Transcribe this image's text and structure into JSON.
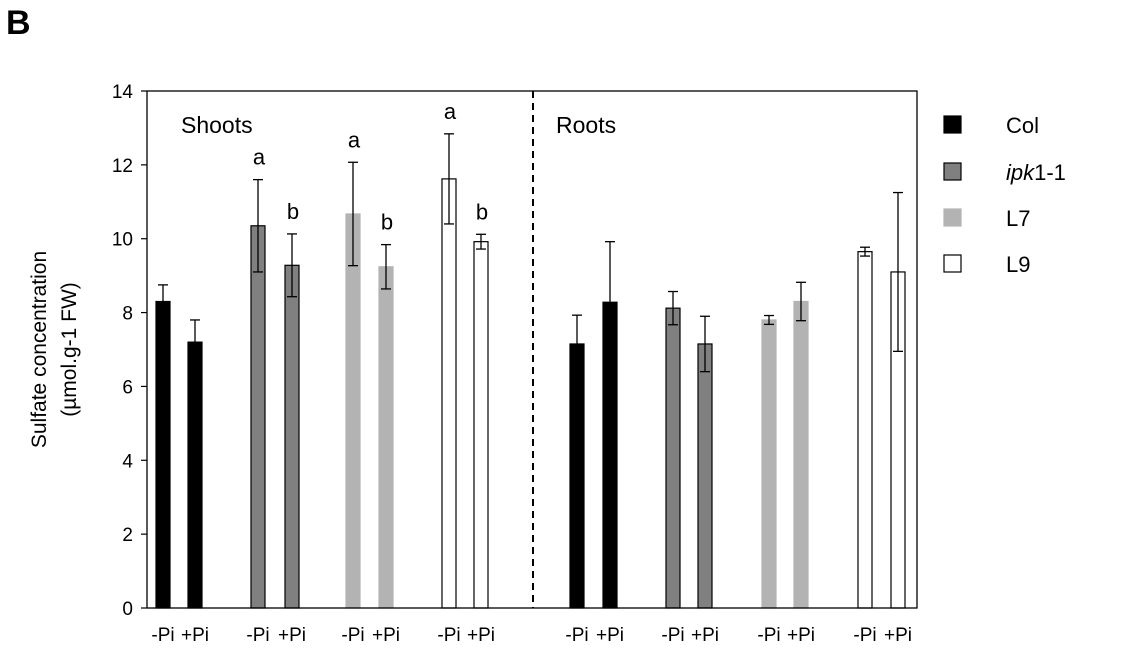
{
  "panel_label": "B",
  "chart_data": {
    "type": "bar",
    "ylabel": [
      "Sulfate concentration",
      "(µmol.g-1 FW)"
    ],
    "ylim": [
      0,
      14
    ],
    "yticks": [
      0,
      2,
      4,
      6,
      8,
      10,
      12,
      14
    ],
    "groups": [
      {
        "tissue": "Shoots",
        "line": "Col",
        "x_labels": [
          "-Pi",
          "+Pi"
        ],
        "values": [
          8.3,
          7.2
        ],
        "errors": [
          0.45,
          0.6
        ],
        "sig": [
          "",
          ""
        ]
      },
      {
        "tissue": "Shoots",
        "line": "ipk1-1",
        "x_labels": [
          "-Pi",
          "+Pi"
        ],
        "values": [
          10.35,
          9.28
        ],
        "errors": [
          1.25,
          0.85
        ],
        "sig": [
          "a",
          "b"
        ]
      },
      {
        "tissue": "Shoots",
        "line": "L7",
        "x_labels": [
          "-Pi",
          "+Pi"
        ],
        "values": [
          10.67,
          9.24
        ],
        "errors": [
          1.4,
          0.6
        ],
        "sig": [
          "a",
          "b"
        ]
      },
      {
        "tissue": "Shoots",
        "line": "L9",
        "x_labels": [
          "-Pi",
          "+Pi"
        ],
        "values": [
          11.62,
          9.92
        ],
        "errors": [
          1.22,
          0.2
        ],
        "sig": [
          "a",
          "b"
        ]
      },
      {
        "tissue": "Roots",
        "line": "Col",
        "x_labels": [
          "-Pi",
          "+Pi"
        ],
        "values": [
          7.15,
          8.28
        ],
        "errors": [
          0.78,
          1.64
        ],
        "sig": [
          "",
          ""
        ]
      },
      {
        "tissue": "Roots",
        "line": "ipk1-1",
        "x_labels": [
          "-Pi",
          "+Pi"
        ],
        "values": [
          8.12,
          7.15
        ],
        "errors": [
          0.45,
          0.75
        ],
        "sig": [
          "",
          ""
        ]
      },
      {
        "tissue": "Roots",
        "line": "L7",
        "x_labels": [
          "-Pi",
          "+Pi"
        ],
        "values": [
          7.8,
          8.3
        ],
        "errors": [
          0.12,
          0.52
        ],
        "sig": [
          "",
          ""
        ]
      },
      {
        "tissue": "Roots",
        "line": "L9",
        "x_labels": [
          "-Pi",
          "+Pi"
        ],
        "values": [
          9.65,
          9.1
        ],
        "errors": [
          0.12,
          2.15
        ],
        "sig": [
          "",
          ""
        ]
      }
    ],
    "tissues": [
      "Shoots",
      "Roots"
    ],
    "legend": [
      {
        "name": "Col",
        "name_main": "Col",
        "name_suffix": "",
        "italic_part": false,
        "fill": "#000000",
        "stroke": "#000000"
      },
      {
        "name": "ipk1-1",
        "name_main": "ipk",
        "name_suffix": "1-1",
        "italic_part": true,
        "fill": "#808080",
        "stroke": "#000000"
      },
      {
        "name": "L7",
        "name_main": "L7",
        "name_suffix": "",
        "italic_part": false,
        "fill": "#b3b3b3",
        "stroke": "#b3b3b3"
      },
      {
        "name": "L9",
        "name_main": "L9",
        "name_suffix": "",
        "italic_part": false,
        "fill": "#ffffff",
        "stroke": "#000000"
      }
    ],
    "legend_position": "right",
    "grid": false,
    "divider": "dashed line between Shoots and Roots"
  }
}
